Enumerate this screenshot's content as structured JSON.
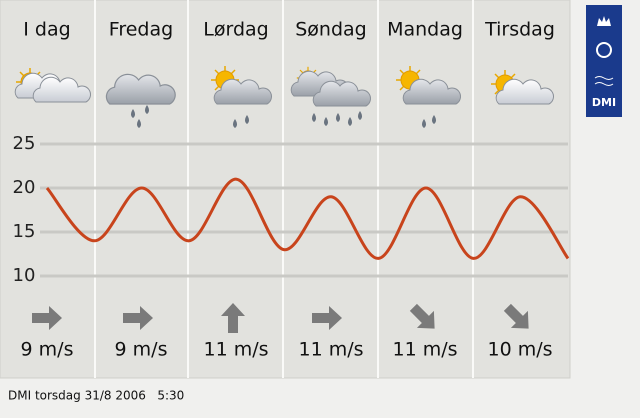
{
  "days": [
    "I dag",
    "Fredag",
    "Lørdag",
    "Søndag",
    "Mandag",
    "Tirsdag"
  ],
  "wind": [
    "9 m/s",
    "9 m/s",
    "11 m/s",
    "11 m/s",
    "11 m/s",
    "10 m/s"
  ],
  "footer": "DMI torsdag 31/8 2006   5:30",
  "logo": "DMI",
  "chart_data": {
    "type": "line",
    "ylim": [
      10,
      25
    ],
    "yticks": [
      10,
      15,
      20,
      25
    ],
    "grid": true,
    "series": [
      {
        "color": "#c8441c",
        "values": [
          20,
          14,
          20,
          14,
          21,
          13,
          19,
          12,
          20,
          12,
          19,
          12
        ]
      }
    ]
  }
}
